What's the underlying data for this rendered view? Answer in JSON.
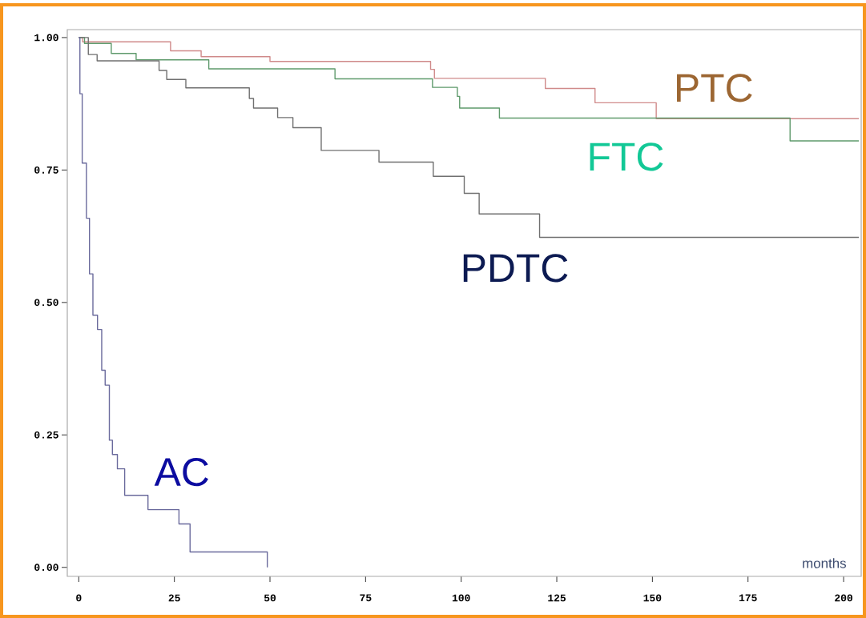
{
  "chart_data": {
    "type": "step",
    "xlabel": "months",
    "xlim": [
      -3,
      204.6
    ],
    "ylim": [
      -0.017,
      1.015
    ],
    "xticks": [
      0,
      25,
      50,
      75,
      100,
      125,
      150,
      175,
      200
    ],
    "yticks": [
      {
        "value": 0,
        "label": "0.00"
      },
      {
        "value": 0.25,
        "label": "0.25"
      },
      {
        "value": 0.5,
        "label": "0.50"
      },
      {
        "value": 0.75,
        "label": "0.75"
      },
      {
        "value": 1,
        "label": "1.00"
      }
    ],
    "grid": false,
    "legend": false,
    "marker": "none",
    "line_style": "solid",
    "series": [
      {
        "name": "PTC",
        "color": "#d08a8a",
        "x": [
          0,
          1,
          24,
          32,
          50,
          92,
          93,
          122,
          135,
          151,
          204
        ],
        "values": [
          1,
          0.992,
          0.975,
          0.964,
          0.955,
          0.94,
          0.923,
          0.904,
          0.877,
          0.847,
          0.847
        ]
      },
      {
        "name": "FTC",
        "color": "#5f9a6c",
        "x": [
          0,
          1.5,
          8.5,
          15,
          34,
          67,
          92.5,
          99,
          99.6,
          110,
          186,
          204
        ],
        "values": [
          1,
          0.989,
          0.97,
          0.958,
          0.941,
          0.922,
          0.906,
          0.889,
          0.867,
          0.848,
          0.805,
          0.805
        ]
      },
      {
        "name": "PDTC",
        "color": "#707070",
        "x": [
          0,
          2.5,
          4.8,
          21,
          23,
          28,
          44.6,
          45.7,
          52,
          56,
          63.4,
          78.5,
          92.7,
          100.8,
          104.7,
          120.5,
          204
        ],
        "values": [
          1,
          0.968,
          0.956,
          0.938,
          0.921,
          0.905,
          0.885,
          0.867,
          0.849,
          0.83,
          0.787,
          0.765,
          0.738,
          0.706,
          0.667,
          0.623,
          0.623
        ]
      },
      {
        "name": "AC",
        "color": "#6a6a9c",
        "x": [
          0,
          0.3,
          0.9,
          2,
          2.8,
          3.7,
          4.9,
          6,
          6.9,
          8,
          8.8,
          10.1,
          12,
          18.1,
          26.2,
          29.1,
          49.3
        ],
        "values": [
          1,
          0.894,
          0.763,
          0.659,
          0.554,
          0.476,
          0.449,
          0.372,
          0.344,
          0.24,
          0.213,
          0.186,
          0.136,
          0.109,
          0.082,
          0.029,
          0
        ]
      }
    ]
  }
}
